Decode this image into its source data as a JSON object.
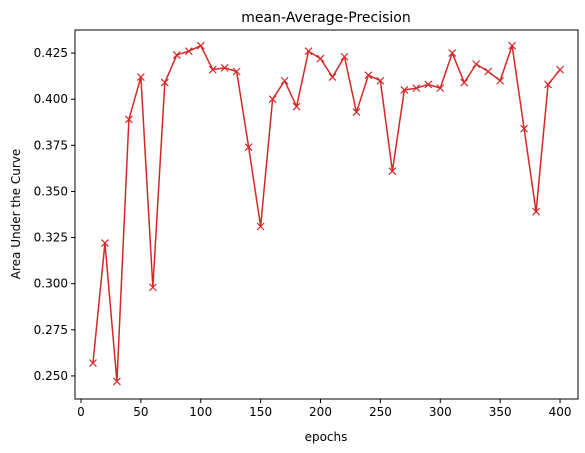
{
  "chart_data": {
    "type": "line",
    "title": "mean-Average-Precision",
    "xlabel": "epochs",
    "ylabel": "Area Under the Curve",
    "xlim": [
      -5,
      415
    ],
    "ylim": [
      0.2375,
      0.4375
    ],
    "xticks": [
      0,
      50,
      100,
      150,
      200,
      250,
      300,
      350,
      400
    ],
    "yticks": [
      0.25,
      0.275,
      0.3,
      0.325,
      0.35,
      0.375,
      0.4,
      0.425
    ],
    "ytick_labels": [
      "0.250",
      "0.275",
      "0.300",
      "0.325",
      "0.350",
      "0.375",
      "0.400",
      "0.425"
    ],
    "grid": false,
    "series": [
      {
        "color": "#d62728",
        "marker": "x",
        "x": [
          10,
          20,
          30,
          40,
          50,
          60,
          70,
          80,
          90,
          100,
          110,
          120,
          130,
          140,
          150,
          160,
          170,
          180,
          190,
          200,
          210,
          220,
          230,
          240,
          250,
          260,
          270,
          280,
          290,
          300,
          310,
          320,
          330,
          340,
          350,
          360,
          370,
          380,
          390,
          400
        ],
        "y": [
          0.257,
          0.322,
          0.247,
          0.389,
          0.412,
          0.298,
          0.409,
          0.424,
          0.426,
          0.429,
          0.416,
          0.417,
          0.415,
          0.374,
          0.331,
          0.4,
          0.41,
          0.396,
          0.426,
          0.422,
          0.412,
          0.423,
          0.393,
          0.413,
          0.41,
          0.361,
          0.405,
          0.406,
          0.408,
          0.406,
          0.425,
          0.409,
          0.419,
          0.415,
          0.41,
          0.429,
          0.384,
          0.339,
          0.408,
          0.416
        ]
      }
    ]
  }
}
